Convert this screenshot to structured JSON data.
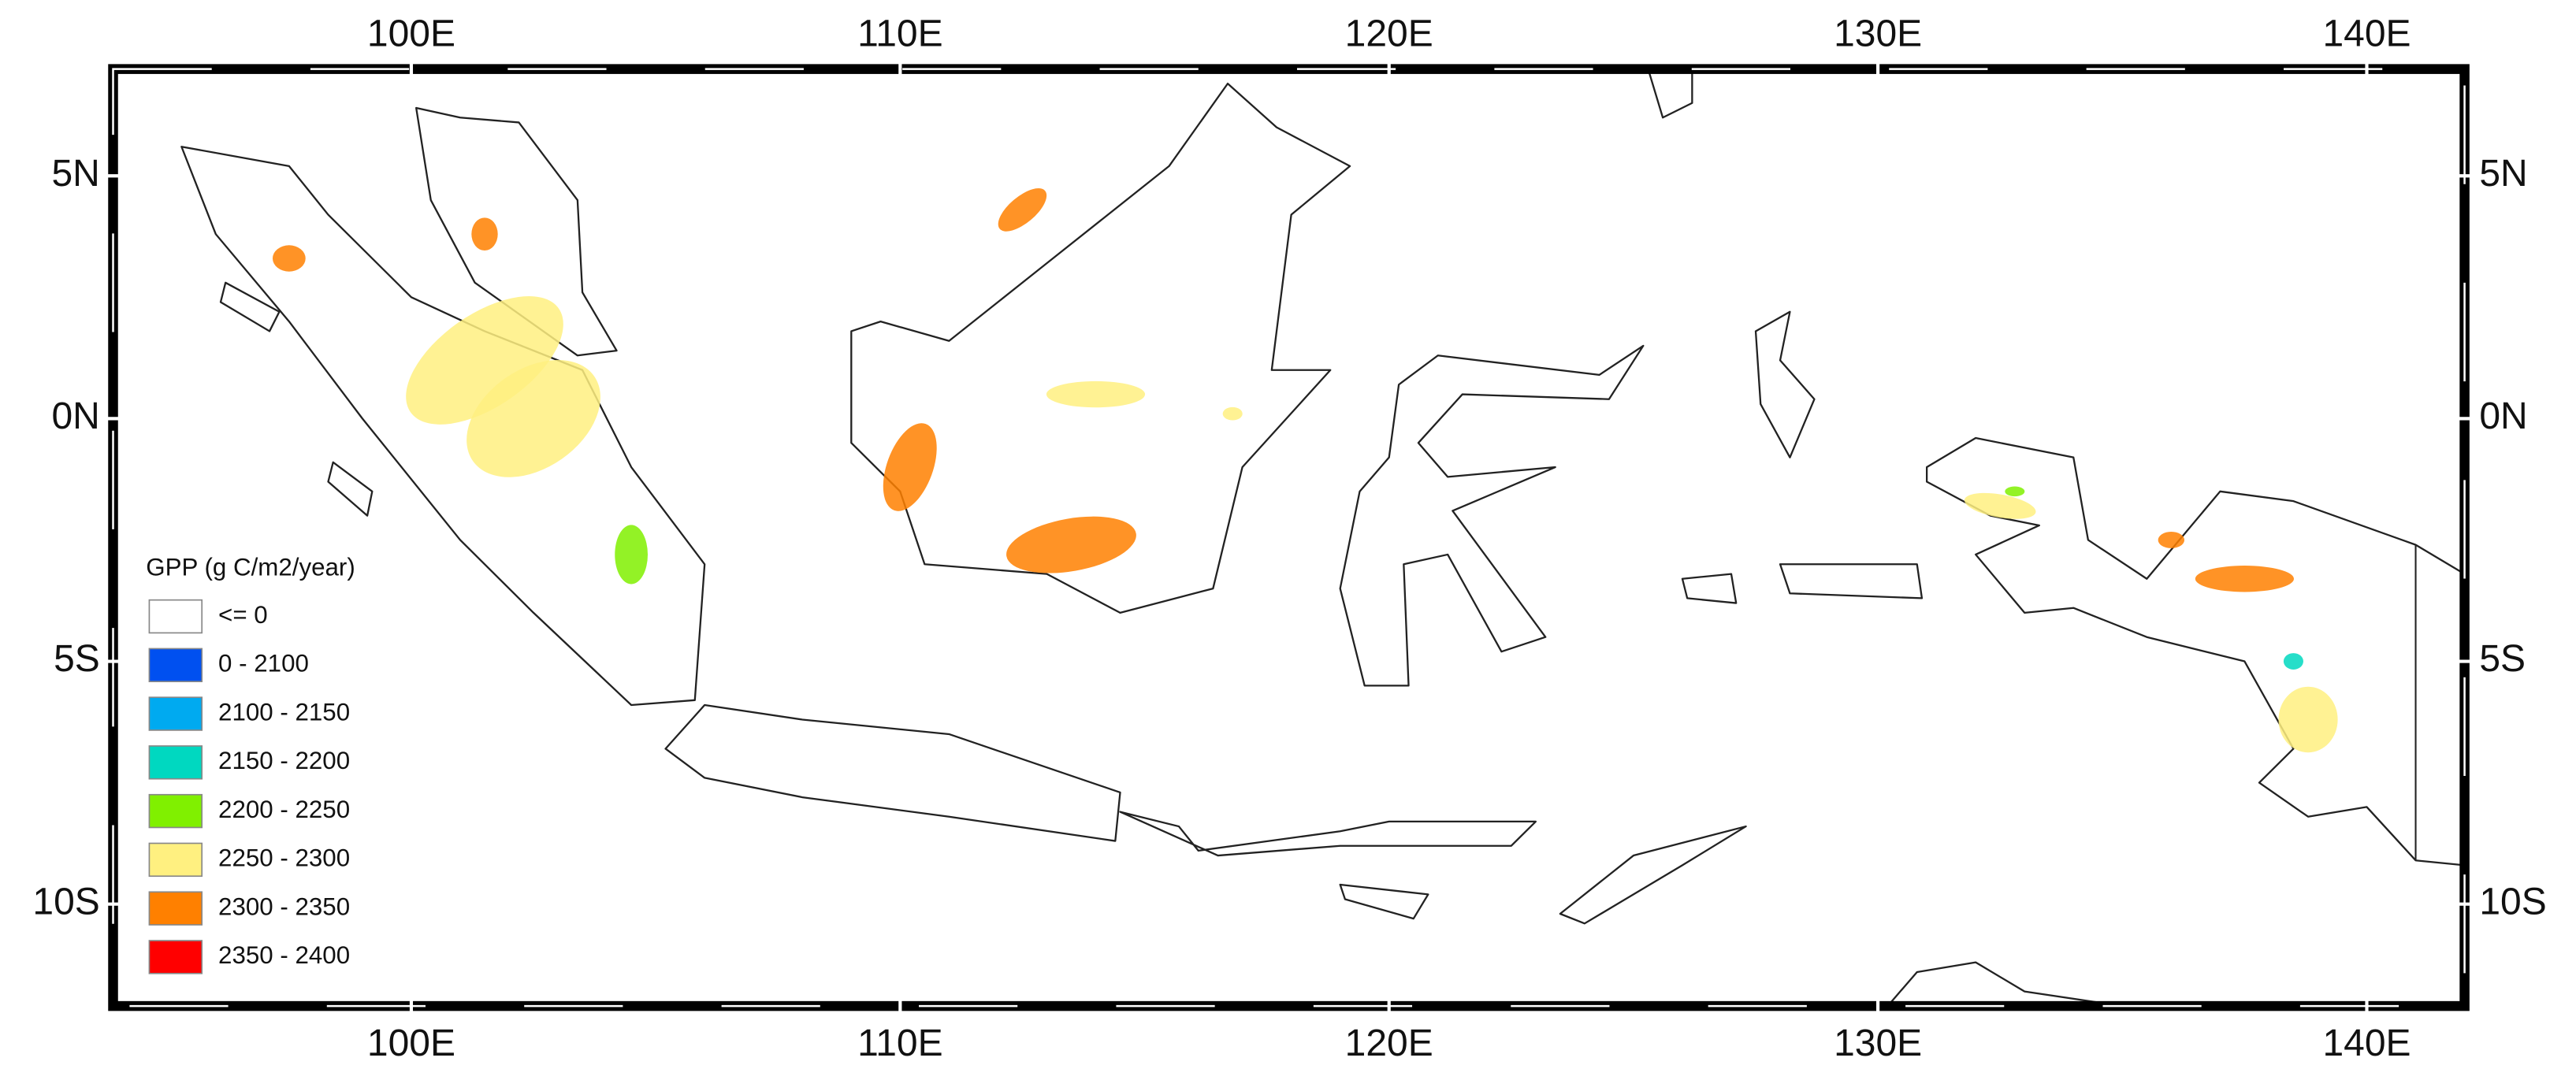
{
  "chart_data": {
    "type": "map",
    "xlim": [
      93.9,
      142.0
    ],
    "ylim": [
      -12.1,
      7.2
    ],
    "xticks": [
      {
        "value": 100,
        "label": "100E"
      },
      {
        "value": 110,
        "label": "110E"
      },
      {
        "value": 120,
        "label": "120E"
      },
      {
        "value": 130,
        "label": "130E"
      },
      {
        "value": 140,
        "label": "140E"
      }
    ],
    "yticks": [
      {
        "value": 5,
        "label": "5N"
      },
      {
        "value": 0,
        "label": "0N"
      },
      {
        "value": -5,
        "label": "5S"
      },
      {
        "value": -10,
        "label": "10S"
      }
    ],
    "legend": {
      "title": "GPP (g C/m2/year)",
      "items": [
        {
          "label": "<= 0",
          "color": "#ffffff"
        },
        {
          "label": "0 - 2100",
          "color": "#0050f0"
        },
        {
          "label": "2100 - 2150",
          "color": "#00aaf0"
        },
        {
          "label": "2150 - 2200",
          "color": "#00d8c0"
        },
        {
          "label": "2200 - 2250",
          "color": "#80f000"
        },
        {
          "label": "2250 - 2300",
          "color": "#fff080"
        },
        {
          "label": "2300 - 2350",
          "color": "#ff8000"
        },
        {
          "label": "2350 - 2400",
          "color": "#ff0000"
        }
      ]
    }
  }
}
